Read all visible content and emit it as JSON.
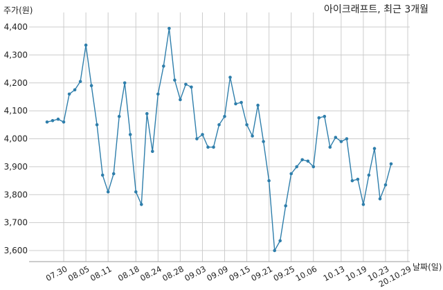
{
  "chart_data": {
    "type": "line",
    "title": "아이크래프트, 최근 3개월",
    "xlabel": "날짜(일)",
    "ylabel": "주가(원)",
    "ylim": [
      3500,
      4400
    ],
    "yticks": [
      3600,
      3700,
      3800,
      3900,
      4000,
      4100,
      4200,
      4300,
      4400
    ],
    "ytick_labels": [
      "3,600",
      "3,700",
      "3,800",
      "3,900",
      "4,000",
      "4,100",
      "4,200",
      "4,300",
      "4,400"
    ],
    "grid": true,
    "xticks": [
      {
        "label": "07.30",
        "index": 3
      },
      {
        "label": "08.05",
        "index": 7
      },
      {
        "label": "08.11",
        "index": 11
      },
      {
        "label": "08.18",
        "index": 16
      },
      {
        "label": "08.24",
        "index": 20
      },
      {
        "label": "08.28",
        "index": 24
      },
      {
        "label": "09.03",
        "index": 28
      },
      {
        "label": "09.09",
        "index": 32
      },
      {
        "label": "09.15",
        "index": 36
      },
      {
        "label": "09.21",
        "index": 40
      },
      {
        "label": "09.25",
        "index": 44
      },
      {
        "label": "10.06",
        "index": 48
      },
      {
        "label": "10.13",
        "index": 53
      },
      {
        "label": "10.19",
        "index": 57
      },
      {
        "label": "10.23",
        "index": 61
      },
      {
        "label": "20.10.29",
        "index": 65
      }
    ],
    "values": [
      4060,
      4065,
      4070,
      4060,
      4160,
      4175,
      4205,
      4335,
      4190,
      4050,
      3870,
      3810,
      3875,
      4080,
      4200,
      4015,
      3810,
      3765,
      4090,
      3955,
      4160,
      4260,
      4395,
      4210,
      4140,
      4195,
      4185,
      4000,
      4015,
      3970,
      3970,
      4050,
      4080,
      4220,
      4125,
      4130,
      4050,
      4010,
      4120,
      3990,
      3850,
      3600,
      3635,
      3760,
      3875,
      3900,
      3925,
      3920,
      3900,
      4075,
      4080,
      3970,
      4005,
      3990,
      4000,
      3850,
      3855,
      3765,
      3870,
      3965,
      3785,
      3835,
      3910
    ],
    "colors": {
      "line": "#2e7eab",
      "grid": "#cccccc",
      "axis": "#999999"
    }
  }
}
